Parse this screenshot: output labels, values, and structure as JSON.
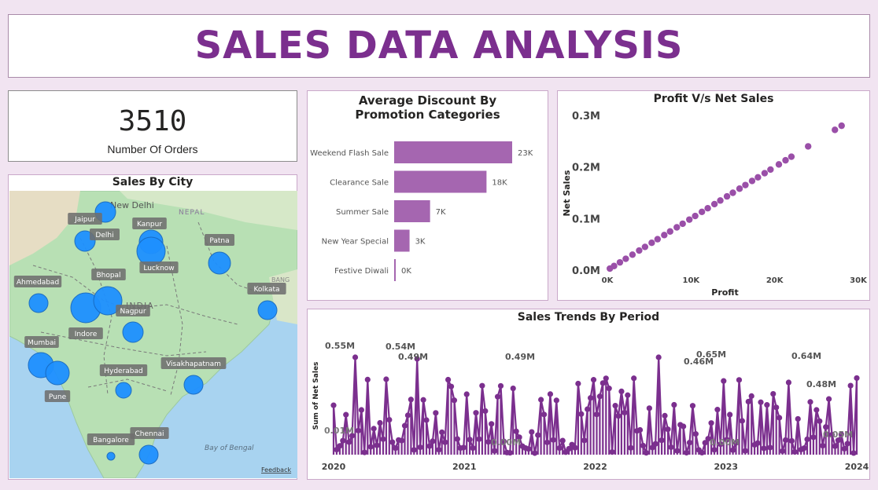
{
  "header": {
    "title": "SALES DATA ANALYSIS"
  },
  "kpi": {
    "value": "3510",
    "label": "Number Of Orders"
  },
  "colors": {
    "purple": "#a566b0",
    "line": "#7b2f8e",
    "title": "#7b2f8e",
    "bubble": "#1e90ff",
    "water": "#a8d3f0",
    "land": "#b8e0b4"
  },
  "map": {
    "title": "Sales By City",
    "region_labels": [
      "New Delhi",
      "NEPAL",
      "INDIA",
      "BANG",
      "Bay of Bengal"
    ],
    "cities": [
      {
        "name": "Jaipur",
        "size": 13
      },
      {
        "name": "Delhi",
        "size": 13
      },
      {
        "name": "Kanpur",
        "size": 15
      },
      {
        "name": "Lucknow",
        "size": 18
      },
      {
        "name": "Patna",
        "size": 14
      },
      {
        "name": "Ahmedabad",
        "size": 12
      },
      {
        "name": "Bhopal",
        "size": 19
      },
      {
        "name": "Indore",
        "size": 18
      },
      {
        "name": "Nagpur",
        "size": 13
      },
      {
        "name": "Kolkata",
        "size": 12
      },
      {
        "name": "Mumbai",
        "size": 16
      },
      {
        "name": "Pune",
        "size": 15
      },
      {
        "name": "Hyderabad",
        "size": 10
      },
      {
        "name": "Visakhapatnam",
        "size": 12
      },
      {
        "name": "Bangalore",
        "size": 5
      },
      {
        "name": "Chennai",
        "size": 12
      }
    ],
    "feedback": "Feedback"
  },
  "chart_data": [
    {
      "type": "bar",
      "orientation": "horizontal",
      "title": "Average Discount By Promotion Categories",
      "categories": [
        "Weekend Flash Sale",
        "Clearance Sale",
        "Summer Sale",
        "New Year Special",
        "Festive Diwali"
      ],
      "values": [
        23000,
        18000,
        7000,
        3000,
        0
      ],
      "data_labels": [
        "23K",
        "18K",
        "7K",
        "3K",
        "0K"
      ]
    },
    {
      "type": "scatter",
      "title": "Profit V/s Net Sales",
      "xlabel": "Profit",
      "ylabel": "Net Sales",
      "xlim": [
        0,
        30000
      ],
      "ylim": [
        0,
        300000
      ],
      "x_ticks": [
        "0K",
        "10K",
        "20K",
        "30K"
      ],
      "y_ticks": [
        "0.0M",
        "0.1M",
        "0.2M",
        "0.3M"
      ],
      "points": [
        [
          300,
          3000
        ],
        [
          800,
          8000
        ],
        [
          1500,
          15000
        ],
        [
          2200,
          22000
        ],
        [
          3000,
          30000
        ],
        [
          3800,
          38000
        ],
        [
          4500,
          45000
        ],
        [
          5300,
          53000
        ],
        [
          6000,
          60000
        ],
        [
          6800,
          68000
        ],
        [
          7500,
          75000
        ],
        [
          8300,
          83000
        ],
        [
          9000,
          90000
        ],
        [
          9800,
          98000
        ],
        [
          10500,
          105000
        ],
        [
          11300,
          113000
        ],
        [
          12000,
          120000
        ],
        [
          12800,
          128000
        ],
        [
          13500,
          135000
        ],
        [
          14300,
          143000
        ],
        [
          15000,
          150000
        ],
        [
          15800,
          158000
        ],
        [
          16500,
          165000
        ],
        [
          17300,
          173000
        ],
        [
          18000,
          180000
        ],
        [
          18800,
          188000
        ],
        [
          19500,
          195000
        ],
        [
          20500,
          205000
        ],
        [
          21300,
          213000
        ],
        [
          22000,
          220000
        ],
        [
          24000,
          240000
        ],
        [
          27200,
          272000
        ],
        [
          28000,
          280000
        ]
      ]
    },
    {
      "type": "line",
      "title": "Sales Trends By Period",
      "ylabel": "Sum of Net Sales",
      "x_ticks": [
        "2020",
        "2021",
        "2022",
        "2023",
        "2024"
      ],
      "annotations": [
        "0.55M",
        "0.54M",
        "0.49M",
        "0.49M",
        "0.46M",
        "0.65M",
        "0.64M",
        "0.48M",
        "0.01M",
        "0.00M",
        "0.00M",
        "0.05M"
      ]
    }
  ]
}
